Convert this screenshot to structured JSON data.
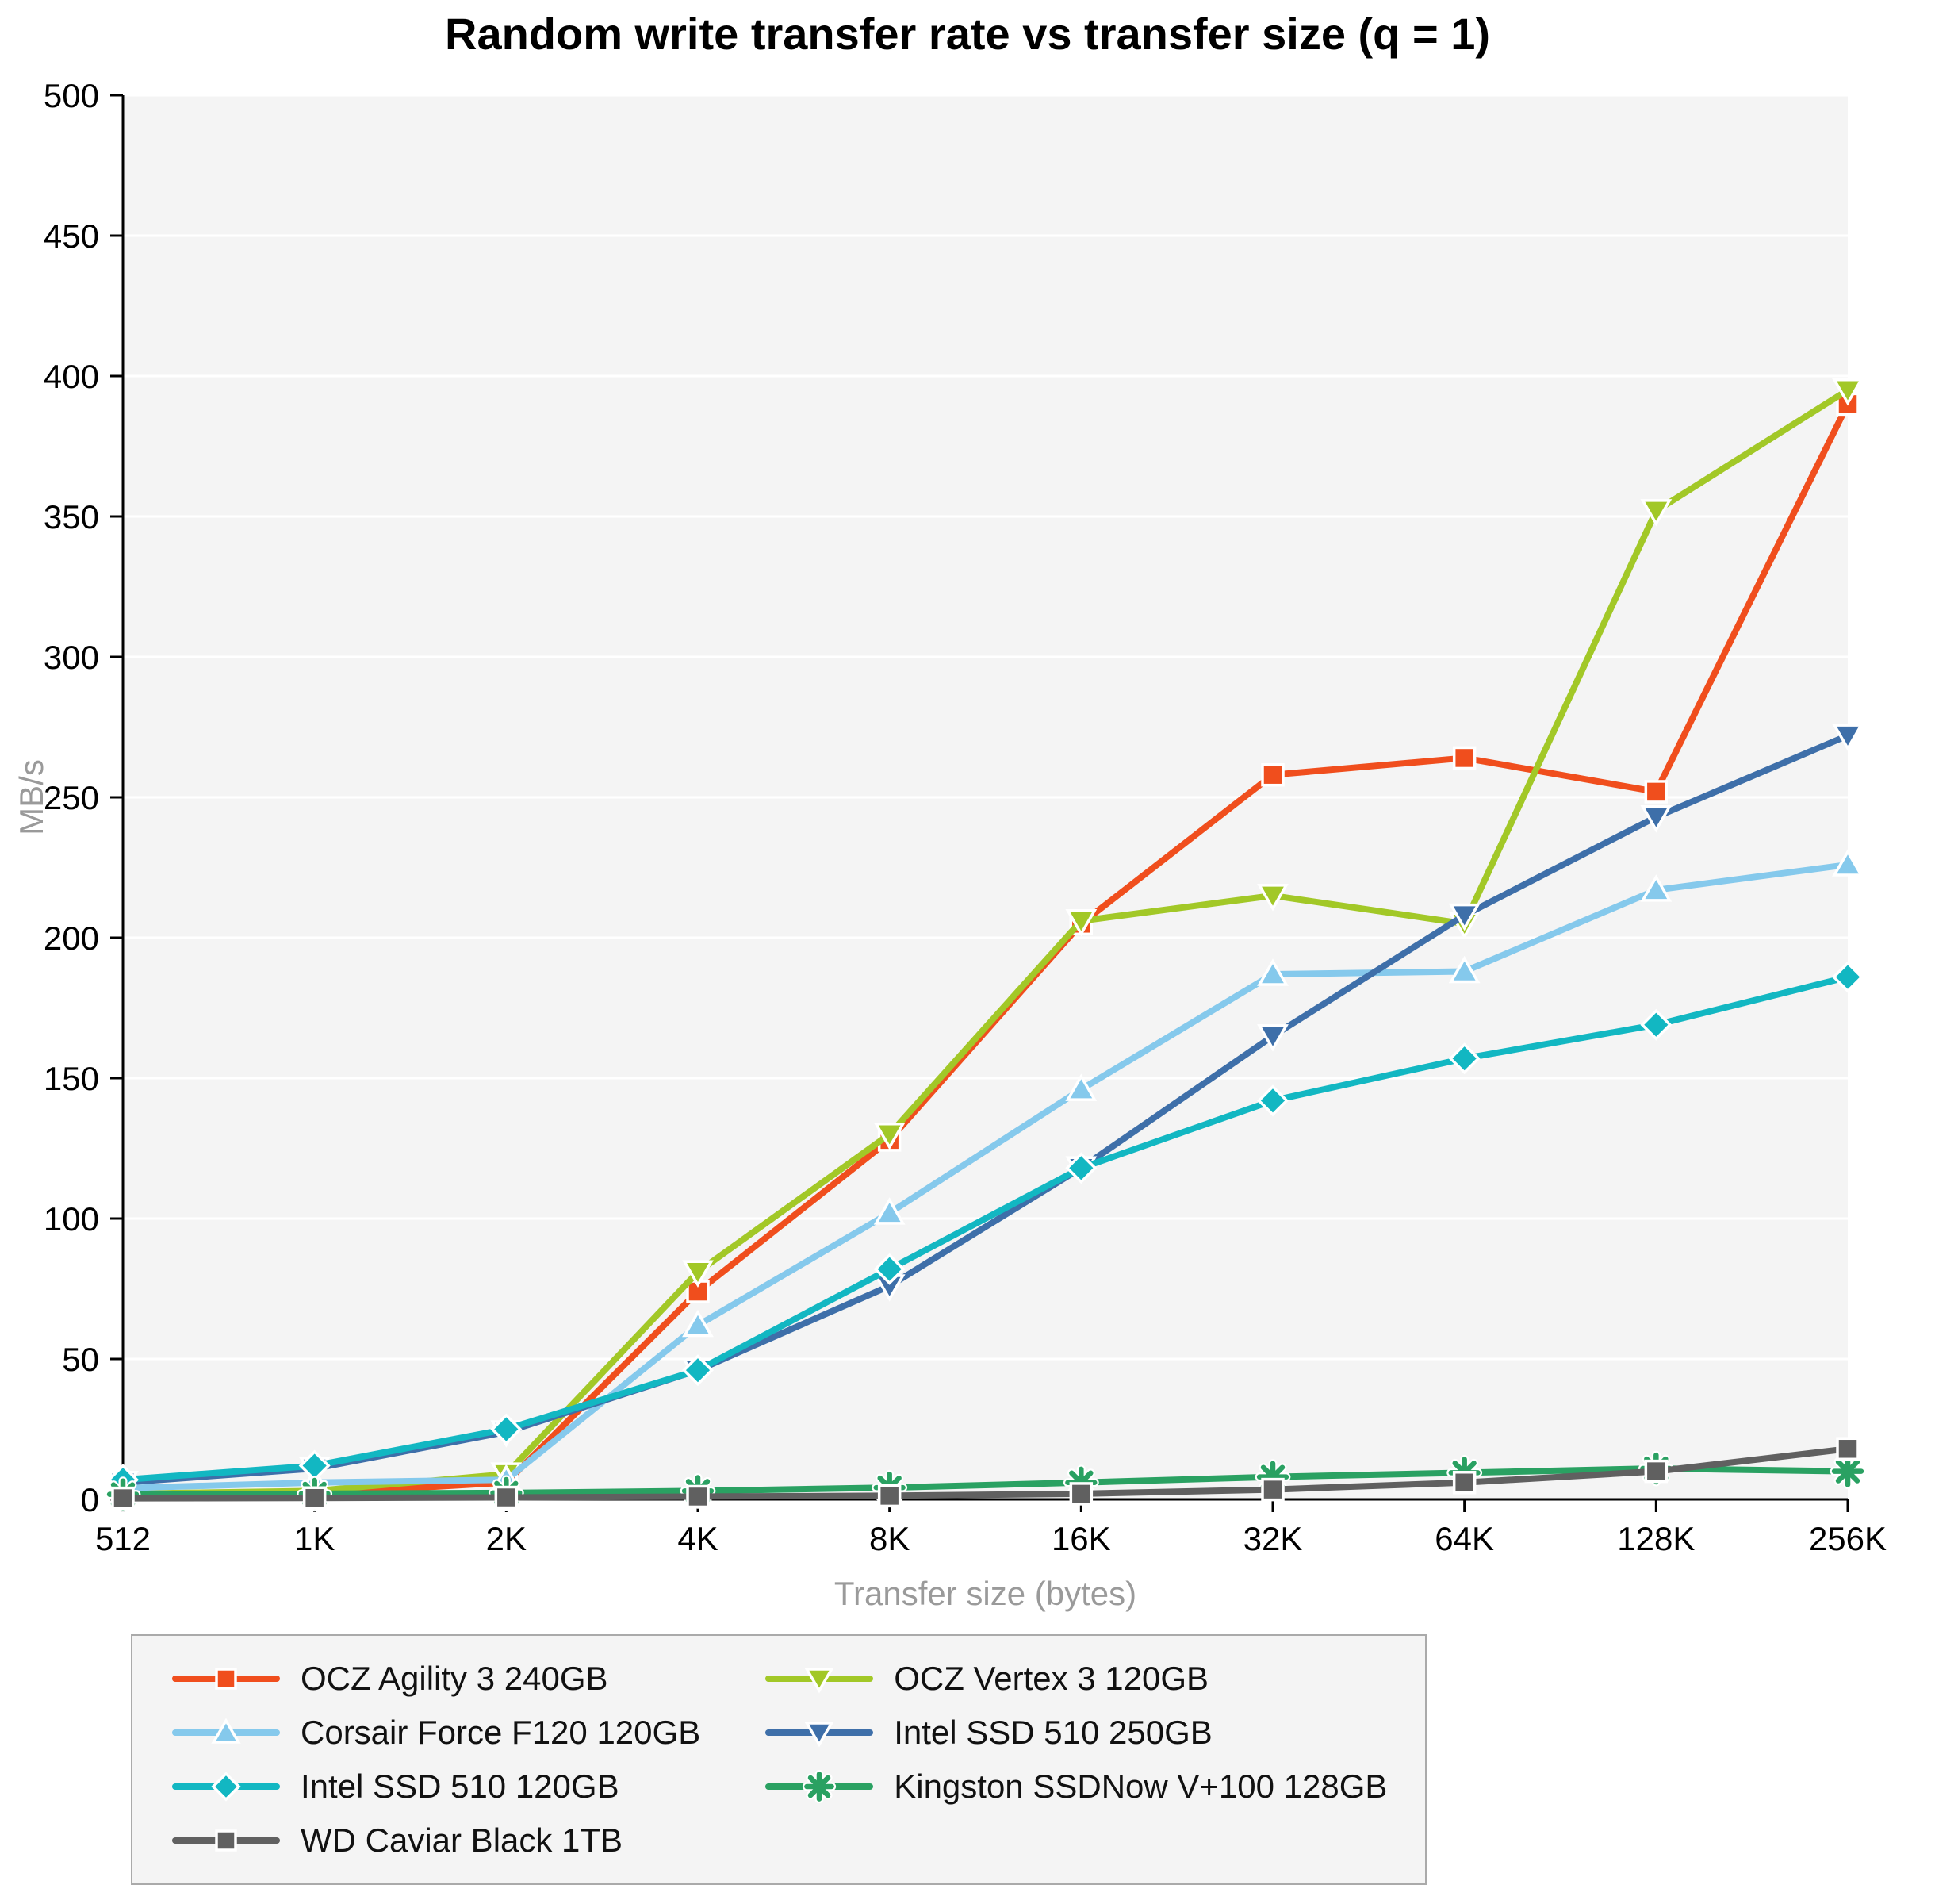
{
  "chart_data": {
    "type": "line",
    "title": "Random write transfer rate vs transfer size (q = 1)",
    "xlabel": "Transfer size (bytes)",
    "ylabel": "MB/s",
    "categories": [
      "512",
      "1K",
      "2K",
      "4K",
      "8K",
      "16K",
      "32K",
      "64K",
      "128K",
      "256K"
    ],
    "ylim": [
      0,
      500
    ],
    "ytick_step": 50,
    "grid": true,
    "legend_position": "bottom-left",
    "plot_bg_color": "#f4f4f4",
    "gridline_color": "#ffffff",
    "axis_color": "#000000",
    "series": [
      {
        "name": "OCZ Agility 3 240GB",
        "color": "#f04e1d",
        "marker": "square",
        "values": [
          2,
          2,
          6,
          74,
          128,
          205,
          258,
          264,
          252,
          390
        ]
      },
      {
        "name": "OCZ Vertex 3 120GB",
        "color": "#a2c827",
        "marker": "triangle-down",
        "values": [
          2,
          3,
          9,
          81,
          130,
          206,
          215,
          205,
          352,
          395
        ]
      },
      {
        "name": "Corsair Force F120 120GB",
        "color": "#85c9ec",
        "marker": "triangle-up",
        "values": [
          4,
          6,
          7,
          62,
          102,
          146,
          187,
          188,
          217,
          226
        ]
      },
      {
        "name": "Intel SSD 510 250GB",
        "color": "#3e6fa9",
        "marker": "triangle-down",
        "values": [
          6,
          11,
          24,
          46,
          76,
          118,
          165,
          208,
          243,
          272
        ]
      },
      {
        "name": "Intel SSD 510 120GB",
        "color": "#12b7c2",
        "marker": "diamond",
        "values": [
          7,
          12,
          25,
          46,
          82,
          118,
          142,
          157,
          169,
          186
        ]
      },
      {
        "name": "Kingston SSDNow V+100 128GB",
        "color": "#2aa162",
        "marker": "asterisk",
        "values": [
          1.8,
          2,
          2.3,
          3,
          4.2,
          6,
          8,
          9.5,
          11,
          10
        ]
      },
      {
        "name": "WD Caviar Black 1TB",
        "color": "#606060",
        "marker": "square",
        "values": [
          0.4,
          0.5,
          0.7,
          1,
          1.3,
          2,
          3.5,
          6,
          10,
          18
        ]
      }
    ]
  }
}
